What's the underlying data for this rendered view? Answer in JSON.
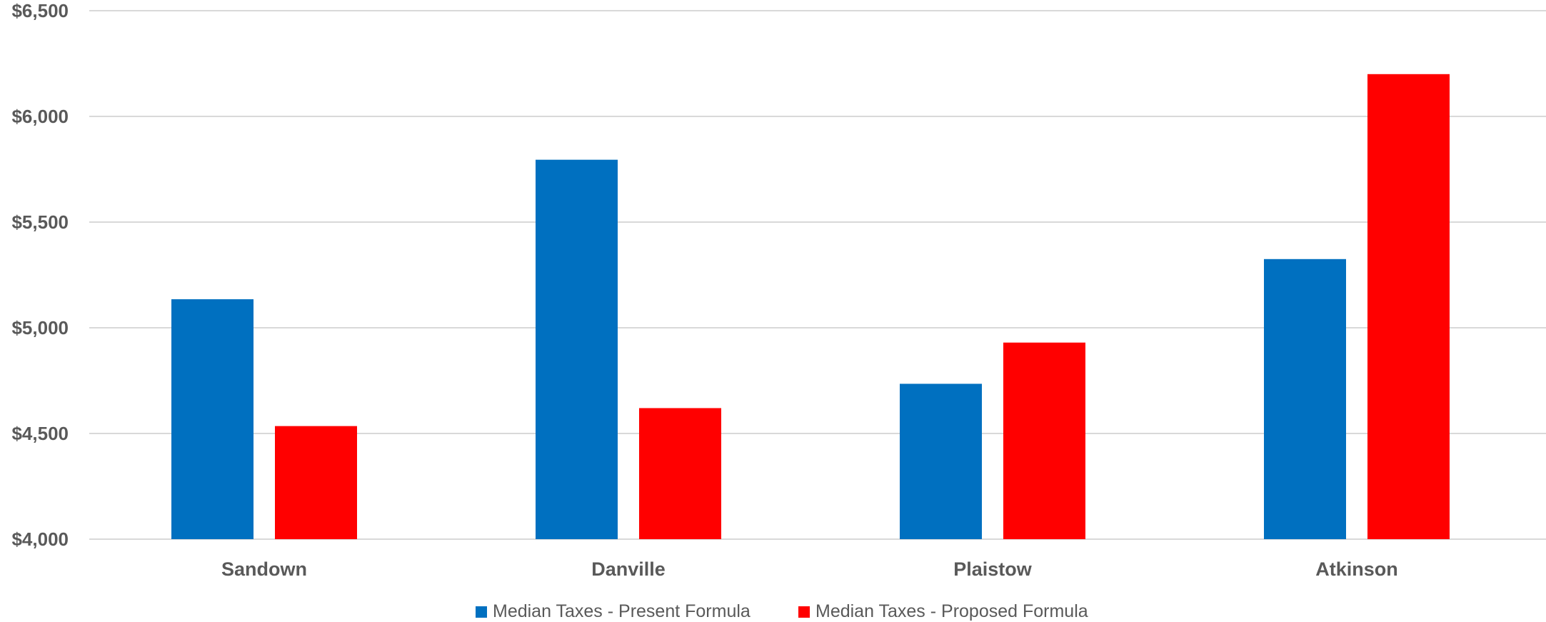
{
  "chart_data": {
    "type": "bar",
    "title": "",
    "xlabel": "",
    "ylabel": "",
    "categories": [
      "Sandown",
      "Danville",
      "Plaistow",
      "Atkinson"
    ],
    "series": [
      {
        "name": "Median Taxes - Present Formula",
        "color": "#0070C0",
        "values": [
          5135,
          5795,
          4735,
          5325
        ]
      },
      {
        "name": "Median Taxes - Proposed Formula",
        "color": "#FF0000",
        "values": [
          4535,
          4620,
          4930,
          6200
        ]
      }
    ],
    "ylim": [
      4000,
      6500
    ],
    "yticks": [
      4000,
      4500,
      5000,
      5500,
      6000,
      6500
    ],
    "ytick_labels": [
      "$4,000",
      "$4,500",
      "$5,000",
      "$5,500",
      "$6,000",
      "$6,500"
    ],
    "grid": true,
    "gridline_color": "#D9D9D9",
    "legend_position": "bottom"
  }
}
